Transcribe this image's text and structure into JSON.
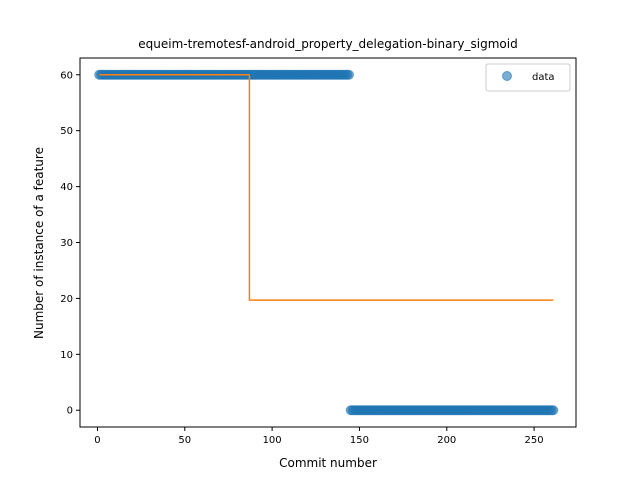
{
  "chart_data": {
    "type": "scatter",
    "title": "equeim-tremotesf-android_property_delegation-binary_sigmoid",
    "xlabel": "Commit number",
    "ylabel": "Number of instance of a feature",
    "xlim": [
      -10,
      274
    ],
    "ylim": [
      -3,
      63
    ],
    "xticks": [
      0,
      50,
      100,
      150,
      200,
      250
    ],
    "yticks": [
      0,
      10,
      20,
      30,
      40,
      50,
      60
    ],
    "legend": {
      "position": "top-right",
      "entries": [
        "data"
      ]
    },
    "grid": false,
    "series": [
      {
        "name": "data",
        "kind": "scatter",
        "color": "#1f77b4",
        "segments": [
          {
            "x_from": 1,
            "x_to": 144,
            "y": 60
          },
          {
            "x_from": 145,
            "x_to": 261,
            "y": 0
          }
        ]
      },
      {
        "kind": "line",
        "color": "#ff7f0e",
        "x": [
          1,
          87,
          87,
          88,
          261
        ],
        "y": [
          60,
          60,
          19.7,
          19.7,
          19.7
        ]
      }
    ]
  }
}
